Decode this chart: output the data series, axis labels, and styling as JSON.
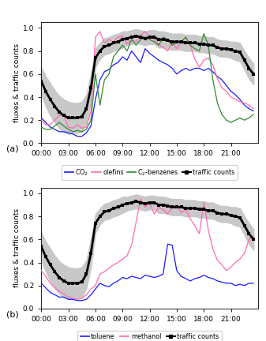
{
  "hours": [
    0,
    0.5,
    1,
    1.5,
    2,
    2.5,
    3,
    3.5,
    4,
    4.5,
    5,
    5.5,
    6,
    6.5,
    7,
    7.5,
    8,
    8.5,
    9,
    9.5,
    10,
    10.5,
    11,
    11.5,
    12,
    12.5,
    13,
    13.5,
    14,
    14.5,
    15,
    15.5,
    16,
    16.5,
    17,
    17.5,
    18,
    18.5,
    19,
    19.5,
    20,
    20.5,
    21,
    21.5,
    22,
    22.5,
    23,
    23.5
  ],
  "traffic_mean": [
    0.54,
    0.45,
    0.38,
    0.32,
    0.27,
    0.24,
    0.22,
    0.22,
    0.22,
    0.23,
    0.3,
    0.48,
    0.74,
    0.8,
    0.84,
    0.85,
    0.87,
    0.88,
    0.9,
    0.91,
    0.92,
    0.93,
    0.92,
    0.91,
    0.92,
    0.92,
    0.9,
    0.9,
    0.89,
    0.88,
    0.88,
    0.88,
    0.87,
    0.87,
    0.87,
    0.86,
    0.86,
    0.85,
    0.85,
    0.83,
    0.82,
    0.82,
    0.81,
    0.8,
    0.79,
    0.72,
    0.65,
    0.6
  ],
  "traffic_upper": [
    0.66,
    0.58,
    0.52,
    0.46,
    0.41,
    0.38,
    0.36,
    0.35,
    0.35,
    0.36,
    0.42,
    0.6,
    0.82,
    0.87,
    0.91,
    0.92,
    0.94,
    0.95,
    0.97,
    0.97,
    0.98,
    0.99,
    0.98,
    0.97,
    0.98,
    0.98,
    0.97,
    0.97,
    0.96,
    0.95,
    0.95,
    0.95,
    0.94,
    0.94,
    0.94,
    0.93,
    0.93,
    0.92,
    0.92,
    0.9,
    0.89,
    0.89,
    0.88,
    0.88,
    0.87,
    0.8,
    0.74,
    0.69
  ],
  "traffic_lower": [
    0.42,
    0.32,
    0.24,
    0.18,
    0.13,
    0.1,
    0.08,
    0.09,
    0.09,
    0.1,
    0.18,
    0.36,
    0.66,
    0.73,
    0.77,
    0.78,
    0.8,
    0.81,
    0.83,
    0.85,
    0.86,
    0.87,
    0.86,
    0.85,
    0.86,
    0.86,
    0.83,
    0.83,
    0.82,
    0.81,
    0.81,
    0.81,
    0.8,
    0.8,
    0.8,
    0.79,
    0.79,
    0.78,
    0.78,
    0.76,
    0.75,
    0.75,
    0.74,
    0.72,
    0.71,
    0.64,
    0.56,
    0.51
  ],
  "co2_a": [
    0.22,
    0.18,
    0.14,
    0.12,
    0.1,
    0.1,
    0.09,
    0.08,
    0.06,
    0.06,
    0.09,
    0.15,
    0.38,
    0.55,
    0.62,
    0.64,
    0.68,
    0.7,
    0.75,
    0.72,
    0.8,
    0.75,
    0.7,
    0.82,
    0.78,
    0.75,
    0.72,
    0.7,
    0.68,
    0.65,
    0.6,
    0.63,
    0.65,
    0.63,
    0.65,
    0.65,
    0.63,
    0.65,
    0.62,
    0.58,
    0.55,
    0.5,
    0.45,
    0.42,
    0.38,
    0.33,
    0.3,
    0.28
  ],
  "olefins_a": [
    0.2,
    0.16,
    0.16,
    0.2,
    0.24,
    0.24,
    0.14,
    0.13,
    0.16,
    0.13,
    0.14,
    0.28,
    0.92,
    0.97,
    0.87,
    0.9,
    0.88,
    0.92,
    0.93,
    0.86,
    0.9,
    0.88,
    0.93,
    0.97,
    0.92,
    0.9,
    0.86,
    0.83,
    0.8,
    0.88,
    0.82,
    0.88,
    0.92,
    0.85,
    0.73,
    0.66,
    0.72,
    0.74,
    0.68,
    0.56,
    0.48,
    0.45,
    0.4,
    0.38,
    0.36,
    0.35,
    0.33,
    0.3
  ],
  "c2benz_a": [
    0.14,
    0.12,
    0.12,
    0.15,
    0.18,
    0.15,
    0.12,
    0.1,
    0.11,
    0.1,
    0.12,
    0.2,
    0.6,
    0.33,
    0.55,
    0.6,
    0.75,
    0.8,
    0.85,
    0.8,
    0.9,
    0.85,
    0.9,
    0.92,
    0.9,
    0.88,
    0.85,
    0.92,
    0.9,
    0.85,
    0.88,
    0.88,
    0.92,
    0.85,
    0.82,
    0.8,
    0.95,
    0.85,
    0.55,
    0.35,
    0.25,
    0.2,
    0.18,
    0.2,
    0.22,
    0.2,
    0.22,
    0.25
  ],
  "toluene_b": [
    0.22,
    0.18,
    0.14,
    0.12,
    0.1,
    0.1,
    0.08,
    0.08,
    0.07,
    0.07,
    0.08,
    0.12,
    0.17,
    0.22,
    0.2,
    0.19,
    0.22,
    0.24,
    0.27,
    0.26,
    0.28,
    0.27,
    0.26,
    0.29,
    0.28,
    0.27,
    0.28,
    0.3,
    0.56,
    0.55,
    0.33,
    0.28,
    0.26,
    0.24,
    0.26,
    0.27,
    0.29,
    0.27,
    0.26,
    0.24,
    0.23,
    0.22,
    0.22,
    0.2,
    0.21,
    0.2,
    0.22,
    0.22
  ],
  "methanol_b": [
    0.33,
    0.28,
    0.22,
    0.18,
    0.15,
    0.13,
    0.1,
    0.09,
    0.08,
    0.09,
    0.12,
    0.17,
    0.2,
    0.3,
    0.32,
    0.35,
    0.38,
    0.4,
    0.43,
    0.46,
    0.55,
    0.75,
    0.95,
    0.88,
    0.92,
    0.82,
    0.88,
    0.86,
    0.82,
    0.88,
    0.9,
    0.83,
    0.86,
    0.78,
    0.72,
    0.65,
    0.92,
    0.68,
    0.52,
    0.42,
    0.38,
    0.33,
    0.36,
    0.4,
    0.43,
    0.48,
    0.6,
    0.63
  ],
  "xlabels": [
    "00:00",
    "03:00",
    "06:00",
    "09:00",
    "12:00",
    "15:00",
    "18:00",
    "21:00"
  ],
  "xticks": [
    0,
    3,
    6,
    9,
    12,
    15,
    18,
    21
  ],
  "color_co2": "#1a1aff",
  "color_olefins": "#ff69b4",
  "color_c2benz": "#2e8b2e",
  "color_traffic": "#000000",
  "color_toluene": "#1a1aff",
  "color_methanol": "#ff69b4",
  "color_shade": "#c8c8c8",
  "ylabel": "fluxes & traffic counts",
  "ylim": [
    0.0,
    1.05
  ],
  "yticks": [
    0.0,
    0.2,
    0.4,
    0.6,
    0.8,
    1.0
  ]
}
